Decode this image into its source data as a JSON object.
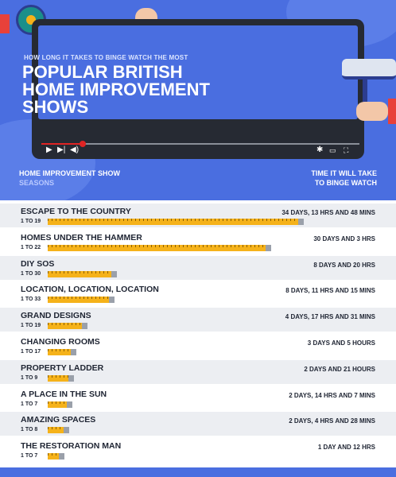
{
  "header": {
    "subtitle": "HOW LONG IT TAKES TO BINGE WATCH THE MOST",
    "title_lines": [
      "POPULAR BRITISH",
      "HOME IMPROVEMENT",
      "SHOWS"
    ],
    "player_icons": [
      "play-icon",
      "skip-icon",
      "volume-icon",
      "settings-icon",
      "miniplayer-icon",
      "fullscreen-icon"
    ],
    "progress": 0.13
  },
  "columns": {
    "show": "HOME IMPROVEMENT SHOW",
    "seasons": "SEASONS",
    "time_line1": "TIME IT WILL TAKE",
    "time_line2": "TO BINGE WATCH"
  },
  "colors": {
    "primary": "#4a6ee0",
    "bar": "#f5b21a",
    "text": "#1f2533",
    "accent_red": "#e02424"
  },
  "chart_data": {
    "type": "bar",
    "orientation": "horizontal",
    "unit": "hours",
    "categories": [
      "ESCAPE TO THE COUNTRY",
      "HOMES UNDER THE HAMMER",
      "DIY SOS",
      "LOCATION, LOCATION, LOCATION",
      "GRAND DESIGNS",
      "CHANGING ROOMS",
      "PROPERTY LADDER",
      "A PLACE IN THE SUN",
      "AMAZING SPACES",
      "THE RESTORATION MAN"
    ],
    "seasons": [
      "1 TO 19",
      "1 TO 22",
      "1 TO 30",
      "1 TO 33",
      "1 TO 19",
      "1 TO 17",
      "1 TO 9",
      "1 TO 7",
      "1 TO 8",
      "1 TO 7"
    ],
    "labels": [
      "34 DAYS, 13 HRS AND 48 MINS",
      "30 DAYS AND 3 HRS",
      "8 DAYS AND 20 HRS",
      "8 DAYS, 11 HRS AND 15 MINS",
      "4 DAYS, 17 HRS AND 31 MINS",
      "3 DAYS AND 5 HOURS",
      "2 DAYS AND 21 HOURS",
      "2 DAYS, 14 HRS AND 7 MINS",
      "2 DAYS, 4 HRS AND 28 MINS",
      "1 DAY AND 12 HRS"
    ],
    "values": [
      829.8,
      723,
      212,
      203.25,
      113.52,
      77,
      69,
      62.12,
      52.47,
      36
    ]
  }
}
